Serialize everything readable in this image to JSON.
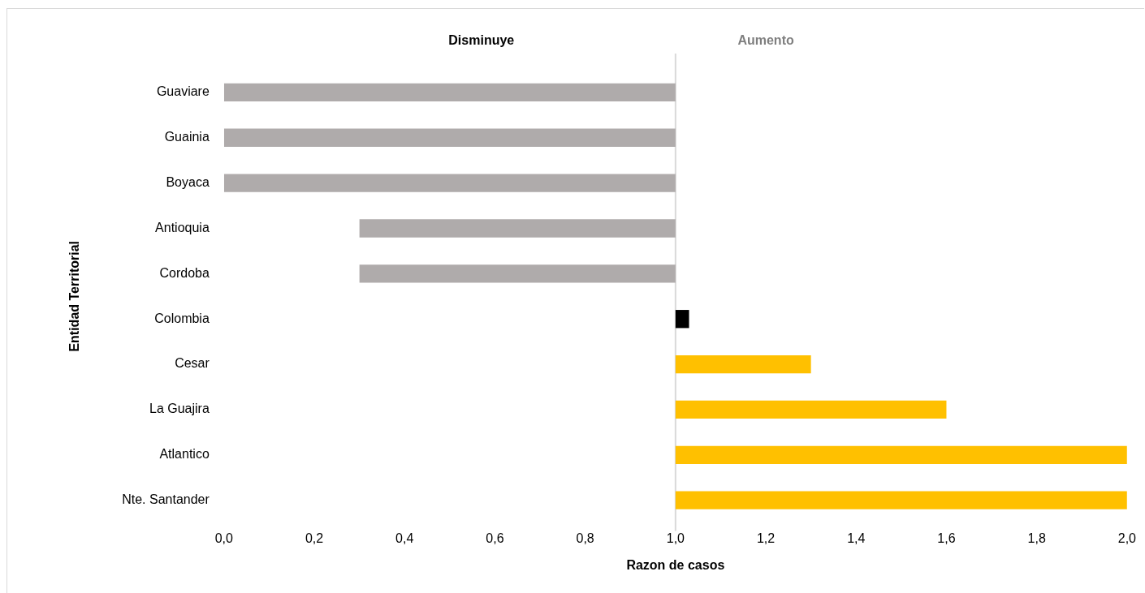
{
  "chart_data": {
    "type": "bar",
    "orientation": "horizontal",
    "xlabel": "Razon de casos",
    "ylabel": "Entidad Territorial",
    "annotations": [
      "Disminuye",
      "Aumento"
    ],
    "categories": [
      "Guaviare",
      "Guainia",
      "Boyaca",
      "Antioquia",
      "Cordoba",
      "Colombia",
      "Cesar",
      "La Guajira",
      "Atlantico",
      "Nte. Santander"
    ],
    "base": [
      1,
      1,
      1,
      1,
      1,
      1,
      1,
      1,
      1,
      1
    ],
    "values": [
      -1,
      -1,
      -1,
      -0.7,
      -0.7,
      0.03,
      0.3,
      0.6,
      1.0,
      1.0
    ],
    "colors": [
      "#afabab",
      "#afabab",
      "#afabab",
      "#afabab",
      "#afabab",
      "#000000",
      "#ffc000",
      "#ffc000",
      "#ffc000",
      "#ffc000"
    ],
    "xlim": [
      0,
      2
    ],
    "xticks": [
      {
        "value": 0,
        "label": "0,0"
      },
      {
        "value": 0.2,
        "label": "0,2"
      },
      {
        "value": 0.4,
        "label": "0,4"
      },
      {
        "value": 0.6,
        "label": "0,6"
      },
      {
        "value": 0.8,
        "label": "0,8"
      },
      {
        "value": 1,
        "label": "1,0"
      },
      {
        "value": 1.2,
        "label": "1,2"
      },
      {
        "value": 1.4,
        "label": "1,4"
      },
      {
        "value": 1.6,
        "label": "1,6"
      },
      {
        "value": 1.8,
        "label": "1,8"
      },
      {
        "value": 2,
        "label": "2,0"
      }
    ],
    "ref_lines": [
      {
        "axis": "x",
        "value": 1,
        "color": "#d9d9d9"
      }
    ],
    "grid": false,
    "legend": false
  }
}
